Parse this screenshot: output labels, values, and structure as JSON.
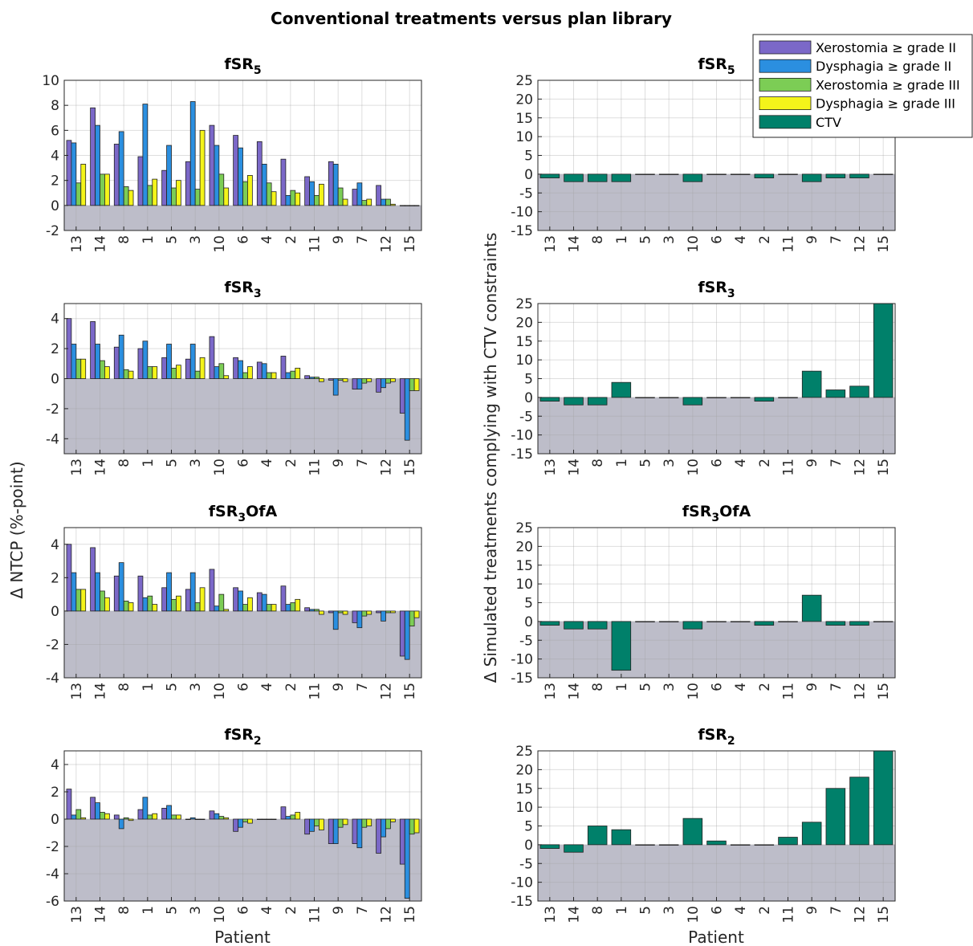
{
  "figure": {
    "title": "Conventional treatments versus plan library",
    "left_ylabel": "Δ NTCP (%-point)",
    "right_ylabel": "Δ Simulated treatments complying with CTV constraints",
    "xlabel": "Patient",
    "negative_region_color": "#bdbdc9"
  },
  "legend": {
    "position": "top-right",
    "entries": [
      {
        "label": "Xerostomia ≥ grade II",
        "color": "#7b68c8"
      },
      {
        "label": "Dysphagia ≥ grade II",
        "color": "#2b8fe0"
      },
      {
        "label": "Xerostomia ≥ grade III",
        "color": "#7ccd55"
      },
      {
        "label": "Dysphagia ≥ grade III",
        "color": "#f4f41a"
      },
      {
        "label": "CTV",
        "color": "#00806a"
      }
    ]
  },
  "chart_data": [
    {
      "type": "bar",
      "title_main": "fSR",
      "title_sub": "5",
      "title_suffix": "",
      "categories": [
        "13",
        "14",
        "8",
        "1",
        "5",
        "3",
        "10",
        "6",
        "4",
        "2",
        "11",
        "9",
        "7",
        "12",
        "15"
      ],
      "ylim": [
        -2,
        10
      ],
      "yticks": [
        -2,
        0,
        2,
        4,
        6,
        8,
        10
      ],
      "grid": true,
      "series": [
        {
          "name": "Xerostomia ≥ grade II",
          "color": "#7b68c8",
          "values": [
            5.2,
            7.8,
            4.9,
            3.9,
            2.8,
            3.5,
            6.4,
            5.6,
            5.1,
            3.7,
            2.3,
            3.5,
            1.3,
            1.6,
            0
          ]
        },
        {
          "name": "Dysphagia ≥ grade II",
          "color": "#2b8fe0",
          "values": [
            5.0,
            6.4,
            5.9,
            8.1,
            4.8,
            8.3,
            4.8,
            4.6,
            3.3,
            0.8,
            1.9,
            3.3,
            1.8,
            0.5,
            0
          ]
        },
        {
          "name": "Xerostomia ≥ grade III",
          "color": "#7ccd55",
          "values": [
            1.8,
            2.5,
            1.5,
            1.6,
            1.4,
            1.3,
            2.5,
            1.9,
            1.8,
            1.2,
            0.8,
            1.4,
            0.4,
            0.5,
            0
          ]
        },
        {
          "name": "Dysphagia ≥ grade III",
          "color": "#f4f41a",
          "values": [
            3.3,
            2.5,
            1.2,
            2.1,
            2.0,
            6.0,
            1.4,
            2.4,
            1.1,
            1.0,
            1.7,
            0.5,
            0.5,
            0.1,
            0
          ]
        }
      ]
    },
    {
      "type": "bar",
      "title_main": "fSR",
      "title_sub": "5",
      "title_suffix": "",
      "categories": [
        "13",
        "14",
        "8",
        "1",
        "5",
        "3",
        "10",
        "6",
        "4",
        "2",
        "11",
        "9",
        "7",
        "12",
        "15"
      ],
      "ylim": [
        -15,
        25
      ],
      "yticks": [
        -15,
        -10,
        -5,
        0,
        5,
        10,
        15,
        20,
        25
      ],
      "grid": true,
      "series": [
        {
          "name": "CTV",
          "color": "#00806a",
          "values": [
            -1,
            -2,
            -2,
            -2,
            0,
            0,
            -2,
            0,
            0,
            -1,
            0,
            -2,
            -1,
            -1,
            0
          ]
        }
      ]
    },
    {
      "type": "bar",
      "title_main": "fSR",
      "title_sub": "3",
      "title_suffix": "",
      "categories": [
        "13",
        "14",
        "8",
        "1",
        "5",
        "3",
        "10",
        "6",
        "4",
        "2",
        "11",
        "9",
        "7",
        "12",
        "15"
      ],
      "ylim": [
        -5,
        5
      ],
      "yticks": [
        -4,
        -2,
        0,
        2,
        4
      ],
      "grid": true,
      "series": [
        {
          "name": "Xerostomia ≥ grade II",
          "color": "#7b68c8",
          "values": [
            4.0,
            3.8,
            2.1,
            2.0,
            1.4,
            1.3,
            2.8,
            1.4,
            1.1,
            1.5,
            0.2,
            -0.1,
            -0.7,
            -0.9,
            -2.3
          ]
        },
        {
          "name": "Dysphagia ≥ grade II",
          "color": "#2b8fe0",
          "values": [
            2.3,
            2.3,
            2.9,
            2.5,
            2.3,
            2.3,
            0.8,
            1.2,
            1.0,
            0.4,
            0.1,
            -1.1,
            -0.7,
            -0.6,
            -4.1
          ]
        },
        {
          "name": "Xerostomia ≥ grade III",
          "color": "#7ccd55",
          "values": [
            1.3,
            1.2,
            0.6,
            0.8,
            0.7,
            0.5,
            1.0,
            0.4,
            0.4,
            0.5,
            0.1,
            -0.1,
            -0.3,
            -0.3,
            -0.8
          ]
        },
        {
          "name": "Dysphagia ≥ grade III",
          "color": "#f4f41a",
          "values": [
            1.3,
            0.8,
            0.5,
            0.8,
            0.9,
            1.4,
            0.2,
            0.8,
            0.4,
            0.7,
            -0.2,
            -0.2,
            -0.2,
            -0.2,
            -0.8
          ]
        }
      ]
    },
    {
      "type": "bar",
      "title_main": "fSR",
      "title_sub": "3",
      "title_suffix": "",
      "categories": [
        "13",
        "14",
        "8",
        "1",
        "5",
        "3",
        "10",
        "6",
        "4",
        "2",
        "11",
        "9",
        "7",
        "12",
        "15"
      ],
      "ylim": [
        -15,
        25
      ],
      "yticks": [
        -15,
        -10,
        -5,
        0,
        5,
        10,
        15,
        20,
        25
      ],
      "grid": true,
      "series": [
        {
          "name": "CTV",
          "color": "#00806a",
          "values": [
            -1,
            -2,
            -2,
            4,
            0,
            0,
            -2,
            0,
            0,
            -1,
            0,
            7,
            2,
            3,
            25
          ]
        }
      ]
    },
    {
      "type": "bar",
      "title_main": "fSR",
      "title_sub": "3",
      "title_suffix": "OfA",
      "categories": [
        "13",
        "14",
        "8",
        "1",
        "5",
        "3",
        "10",
        "6",
        "4",
        "2",
        "11",
        "9",
        "7",
        "12",
        "15"
      ],
      "ylim": [
        -4,
        5
      ],
      "yticks": [
        -4,
        -2,
        0,
        2,
        4
      ],
      "grid": true,
      "series": [
        {
          "name": "Xerostomia ≥ grade II",
          "color": "#7b68c8",
          "values": [
            4.0,
            3.8,
            2.1,
            2.1,
            1.4,
            1.3,
            2.5,
            1.4,
            1.1,
            1.5,
            0.2,
            -0.1,
            -0.7,
            -0.1,
            -2.7
          ]
        },
        {
          "name": "Dysphagia ≥ grade II",
          "color": "#2b8fe0",
          "values": [
            2.3,
            2.3,
            2.9,
            0.8,
            2.3,
            2.3,
            0.3,
            1.2,
            1.0,
            0.4,
            0.1,
            -1.1,
            -1.0,
            -0.6,
            -2.9
          ]
        },
        {
          "name": "Xerostomia ≥ grade III",
          "color": "#7ccd55",
          "values": [
            1.3,
            1.2,
            0.6,
            0.9,
            0.7,
            0.5,
            1.0,
            0.4,
            0.4,
            0.5,
            0.1,
            -0.1,
            -0.3,
            -0.1,
            -0.9
          ]
        },
        {
          "name": "Dysphagia ≥ grade III",
          "color": "#f4f41a",
          "values": [
            1.3,
            0.8,
            0.5,
            0.4,
            0.9,
            1.4,
            0.1,
            0.8,
            0.4,
            0.7,
            -0.2,
            -0.2,
            -0.2,
            -0.1,
            -0.4
          ]
        }
      ]
    },
    {
      "type": "bar",
      "title_main": "fSR",
      "title_sub": "3",
      "title_suffix": "OfA",
      "categories": [
        "13",
        "14",
        "8",
        "1",
        "5",
        "3",
        "10",
        "6",
        "4",
        "2",
        "11",
        "9",
        "7",
        "12",
        "15"
      ],
      "ylim": [
        -15,
        25
      ],
      "yticks": [
        -15,
        -10,
        -5,
        0,
        5,
        10,
        15,
        20,
        25
      ],
      "grid": true,
      "series": [
        {
          "name": "CTV",
          "color": "#00806a",
          "values": [
            -1,
            -2,
            -2,
            -13,
            0,
            0,
            -2,
            0,
            0,
            -1,
            0,
            7,
            -1,
            -1,
            0
          ]
        }
      ]
    },
    {
      "type": "bar",
      "title_main": "fSR",
      "title_sub": "2",
      "title_suffix": "",
      "categories": [
        "13",
        "14",
        "8",
        "1",
        "5",
        "3",
        "10",
        "6",
        "4",
        "2",
        "11",
        "9",
        "7",
        "12",
        "15"
      ],
      "ylim": [
        -6,
        5
      ],
      "yticks": [
        -6,
        -4,
        -2,
        0,
        2,
        4
      ],
      "grid": true,
      "series": [
        {
          "name": "Xerostomia ≥ grade II",
          "color": "#7b68c8",
          "values": [
            2.2,
            1.6,
            0.3,
            0.7,
            0.8,
            0,
            0.6,
            -0.9,
            0,
            0.9,
            -1.1,
            -1.8,
            -1.8,
            -2.5,
            -3.3
          ]
        },
        {
          "name": "Dysphagia ≥ grade II",
          "color": "#2b8fe0",
          "values": [
            0.3,
            1.2,
            -0.7,
            1.6,
            1.0,
            0.1,
            0.4,
            -0.6,
            0,
            0.2,
            -0.9,
            -1.8,
            -2.1,
            -1.3,
            -5.8
          ]
        },
        {
          "name": "Xerostomia ≥ grade III",
          "color": "#7ccd55",
          "values": [
            0.7,
            0.5,
            0.1,
            0.3,
            0.3,
            0,
            0.2,
            -0.2,
            0,
            0.3,
            -0.5,
            -0.6,
            -0.6,
            -0.7,
            -1.1
          ]
        },
        {
          "name": "Dysphagia ≥ grade III",
          "color": "#f4f41a",
          "values": [
            0.1,
            0.4,
            -0.1,
            0.4,
            0.3,
            0,
            0.1,
            -0.3,
            0,
            0.5,
            -0.8,
            -0.4,
            -0.5,
            -0.2,
            -1.0
          ]
        }
      ]
    },
    {
      "type": "bar",
      "title_main": "fSR",
      "title_sub": "2",
      "title_suffix": "",
      "categories": [
        "13",
        "14",
        "8",
        "1",
        "5",
        "3",
        "10",
        "6",
        "4",
        "2",
        "11",
        "9",
        "7",
        "12",
        "15"
      ],
      "ylim": [
        -15,
        25
      ],
      "yticks": [
        -15,
        -10,
        -5,
        0,
        5,
        10,
        15,
        20,
        25
      ],
      "grid": true,
      "series": [
        {
          "name": "CTV",
          "color": "#00806a",
          "values": [
            -1,
            -2,
            5,
            4,
            0,
            0,
            7,
            1,
            0,
            0,
            2,
            6,
            15,
            18,
            25
          ]
        }
      ]
    }
  ]
}
